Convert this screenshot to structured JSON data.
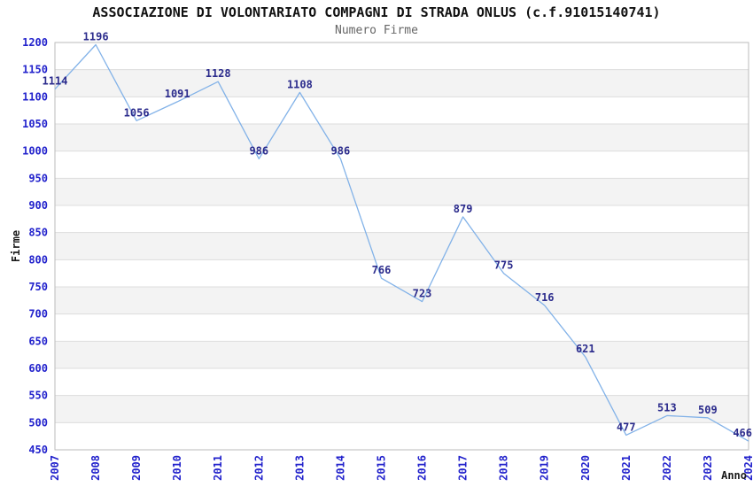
{
  "header": {
    "title": "ASSOCIAZIONE DI VOLONTARIATO COMPAGNI DI STRADA ONLUS (c.f.91015140741)",
    "subtitle": "Numero Firme"
  },
  "chart_data": {
    "type": "line",
    "title": "Numero Firme",
    "categories": [
      "2007",
      "2008",
      "2009",
      "2010",
      "2011",
      "2012",
      "2013",
      "2014",
      "2015",
      "2016",
      "2017",
      "2018",
      "2019",
      "2020",
      "2021",
      "2022",
      "2023",
      "2024"
    ],
    "values": [
      1114,
      1196,
      1056,
      1091,
      1128,
      986,
      1108,
      986,
      766,
      723,
      879,
      775,
      716,
      621,
      477,
      513,
      509,
      466
    ],
    "xlabel": "Anno",
    "ylabel": "Firme",
    "ylim": [
      450,
      1200
    ],
    "ytick_step": 50,
    "grid": "horizontal",
    "banded_background": true,
    "legend": "none",
    "point_markers": false,
    "colors": {
      "line": "#82b2e8",
      "tick_label": "#2222cc",
      "data_label": "#2b2b8c",
      "band": "#f3f3f3",
      "gridline": "#dddddd",
      "plot_border": "#bbbbbb",
      "title": "#111111",
      "subtitle": "#666666",
      "axis_title": "#1a1a1a",
      "background": "#ffffff"
    }
  }
}
